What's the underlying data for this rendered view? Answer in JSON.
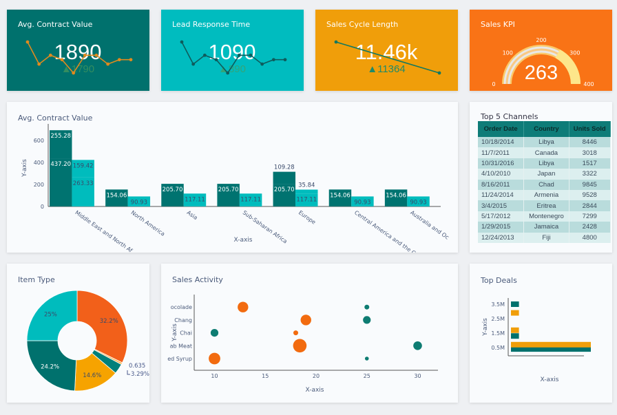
{
  "colors": {
    "teal_dark": "#007370",
    "teal": "#00bcbd",
    "amber": "#f09e0a",
    "orange": "#f97316",
    "scatter_orange": "#f26b0f",
    "scatter_teal": "#0e7c72"
  },
  "kpis": [
    {
      "title": "Avg. Contract Value",
      "value": "1890",
      "delta": "1790",
      "bg": "#00716d",
      "line": "#e08a1e",
      "spark": [
        8,
        3,
        5,
        4,
        1,
        5,
        5,
        3,
        4,
        4
      ]
    },
    {
      "title": "Lead Response Time",
      "value": "1090",
      "delta": "890",
      "bg": "#00bcbf",
      "line": "#0e5c5c",
      "spark": [
        8,
        3,
        5,
        4,
        1,
        5,
        5,
        3,
        4,
        4
      ]
    },
    {
      "title": "Sales Cycle Length",
      "value": "11.46k",
      "delta": "11364",
      "bg": "#f09e0a",
      "line": "#127860",
      "spark": [
        10,
        0
      ]
    },
    {
      "title": "Sales KPI",
      "value": "263",
      "bg": "#f97316",
      "gauge": {
        "min": 0,
        "max": 400,
        "value": 263,
        "ticks": [
          "0",
          "100",
          "200",
          "300",
          "400"
        ]
      }
    }
  ],
  "bar_card": {
    "title": "Avg. Contract Value"
  },
  "top_channels": {
    "title": "Top 5 Channels",
    "columns": [
      "Order Date",
      "Country",
      "Units Sold"
    ],
    "rows": [
      [
        "10/18/2014",
        "Libya",
        "8446"
      ],
      [
        "11/7/2011",
        "Canada",
        "3018"
      ],
      [
        "10/31/2016",
        "Libya",
        "1517"
      ],
      [
        "4/10/2010",
        "Japan",
        "3322"
      ],
      [
        "8/16/2011",
        "Chad",
        "9845"
      ],
      [
        "11/24/2014",
        "Armenia",
        "9528"
      ],
      [
        "3/4/2015",
        "Eritrea",
        "2844"
      ],
      [
        "5/17/2012",
        "Montenegro",
        "7299"
      ],
      [
        "1/29/2015",
        "Jamaica",
        "2428"
      ],
      [
        "12/24/2013",
        "Fiji",
        "4800"
      ]
    ]
  },
  "item_type": {
    "title": "Item Type"
  },
  "sales_activity": {
    "title": "Sales Activity"
  },
  "top_deals": {
    "title": "Top Deals"
  },
  "chart_data": [
    {
      "type": "bar",
      "stacked_groups": true,
      "xlabel": "X-axis",
      "ylabel": "Y-axis",
      "ylim": [
        0,
        700
      ],
      "yticks": [
        "0",
        "200",
        "400",
        "600"
      ],
      "categories": [
        "Middle East and North Af",
        "North America",
        "Asia",
        "Sub-Saharan Africa",
        "Europe",
        "Central America and the C",
        "Australia and Oc"
      ],
      "series": [
        {
          "group": "dark",
          "values": [
            437.2,
            154.06,
            205.7,
            205.7,
            205.7,
            154.06,
            154.06
          ],
          "labels": [
            "437.20",
            "154.06",
            "205.70",
            "205.70",
            "205.70",
            "154.06",
            "154.06"
          ],
          "color": "#007370"
        },
        {
          "group": "dark",
          "values": [
            255.28,
            0,
            0,
            0,
            109.28,
            0,
            0
          ],
          "labels": [
            "255.28",
            "",
            "",
            "",
            "109.28",
            "",
            ""
          ],
          "color": "#007370"
        },
        {
          "group": "light",
          "values": [
            263.33,
            90.93,
            117.11,
            117.11,
            117.11,
            90.93,
            90.93
          ],
          "labels": [
            "263.33",
            "90.93",
            "117.11",
            "117.11",
            "117.11",
            "90.93",
            "90.93"
          ],
          "color": "#00bcbd"
        },
        {
          "group": "light",
          "values": [
            159.42,
            0,
            0,
            0,
            35.84,
            0,
            0
          ],
          "labels": [
            "159.42",
            "",
            "",
            "",
            "35.84",
            "",
            ""
          ],
          "color": "#00bcbd"
        }
      ]
    },
    {
      "type": "pie",
      "hole": true,
      "slices": [
        {
          "label": "32.2%",
          "value": 32.2,
          "color": "#f2601a"
        },
        {
          "label": "0.635",
          "value": 0.635,
          "color": "#f7b55a"
        },
        {
          "label": "3.29%",
          "value": 3.29,
          "color": "#00807a"
        },
        {
          "label": "14.6%",
          "value": 14.6,
          "color": "#f6a300"
        },
        {
          "label": "24.2%",
          "value": 24.2,
          "color": "#00716d"
        },
        {
          "label": "25%",
          "value": 25,
          "color": "#00bcbd"
        }
      ]
    },
    {
      "type": "scatter",
      "xlabel": "X-axis",
      "ylabel": "Y-axis",
      "xticks": [
        "10",
        "15",
        "20",
        "25",
        "30"
      ],
      "xlim": [
        8,
        32
      ],
      "categories": [
        "ed Syrup",
        "ab Meat",
        "Chai",
        "Chang",
        "ocolade"
      ],
      "series": [
        {
          "color": "#f26b0f",
          "points": [
            [
              12.8,
              "ocolade",
              11
            ],
            [
              19,
              "Chang",
              11
            ],
            [
              18,
              "Chai",
              5
            ],
            [
              18.4,
              "ab Meat",
              14
            ],
            [
              10,
              "ed Syrup",
              12
            ]
          ]
        },
        {
          "color": "#0e7c72",
          "points": [
            [
              25,
              "ocolade",
              5
            ],
            [
              25,
              "Chang",
              8
            ],
            [
              10,
              "Chai",
              8
            ],
            [
              30,
              "ab Meat",
              9
            ],
            [
              25,
              "ed Syrup",
              4
            ]
          ]
        }
      ]
    },
    {
      "type": "bar",
      "orientation": "horizontal",
      "xlabel": "X-axis",
      "ylabel": "Y-axis",
      "yticks": [
        "0.5M",
        "1.5M",
        "2.5M",
        "3.5M"
      ],
      "series": [
        {
          "color": "#00716d",
          "bars": [
            [
              3.5,
              1
            ],
            [
              1.3,
              1
            ],
            [
              0.4,
              10
            ]
          ]
        },
        {
          "color": "#f09e0a",
          "bars": [
            [
              2.9,
              1
            ],
            [
              1.7,
              1
            ],
            [
              0.7,
              10
            ]
          ]
        }
      ]
    }
  ]
}
